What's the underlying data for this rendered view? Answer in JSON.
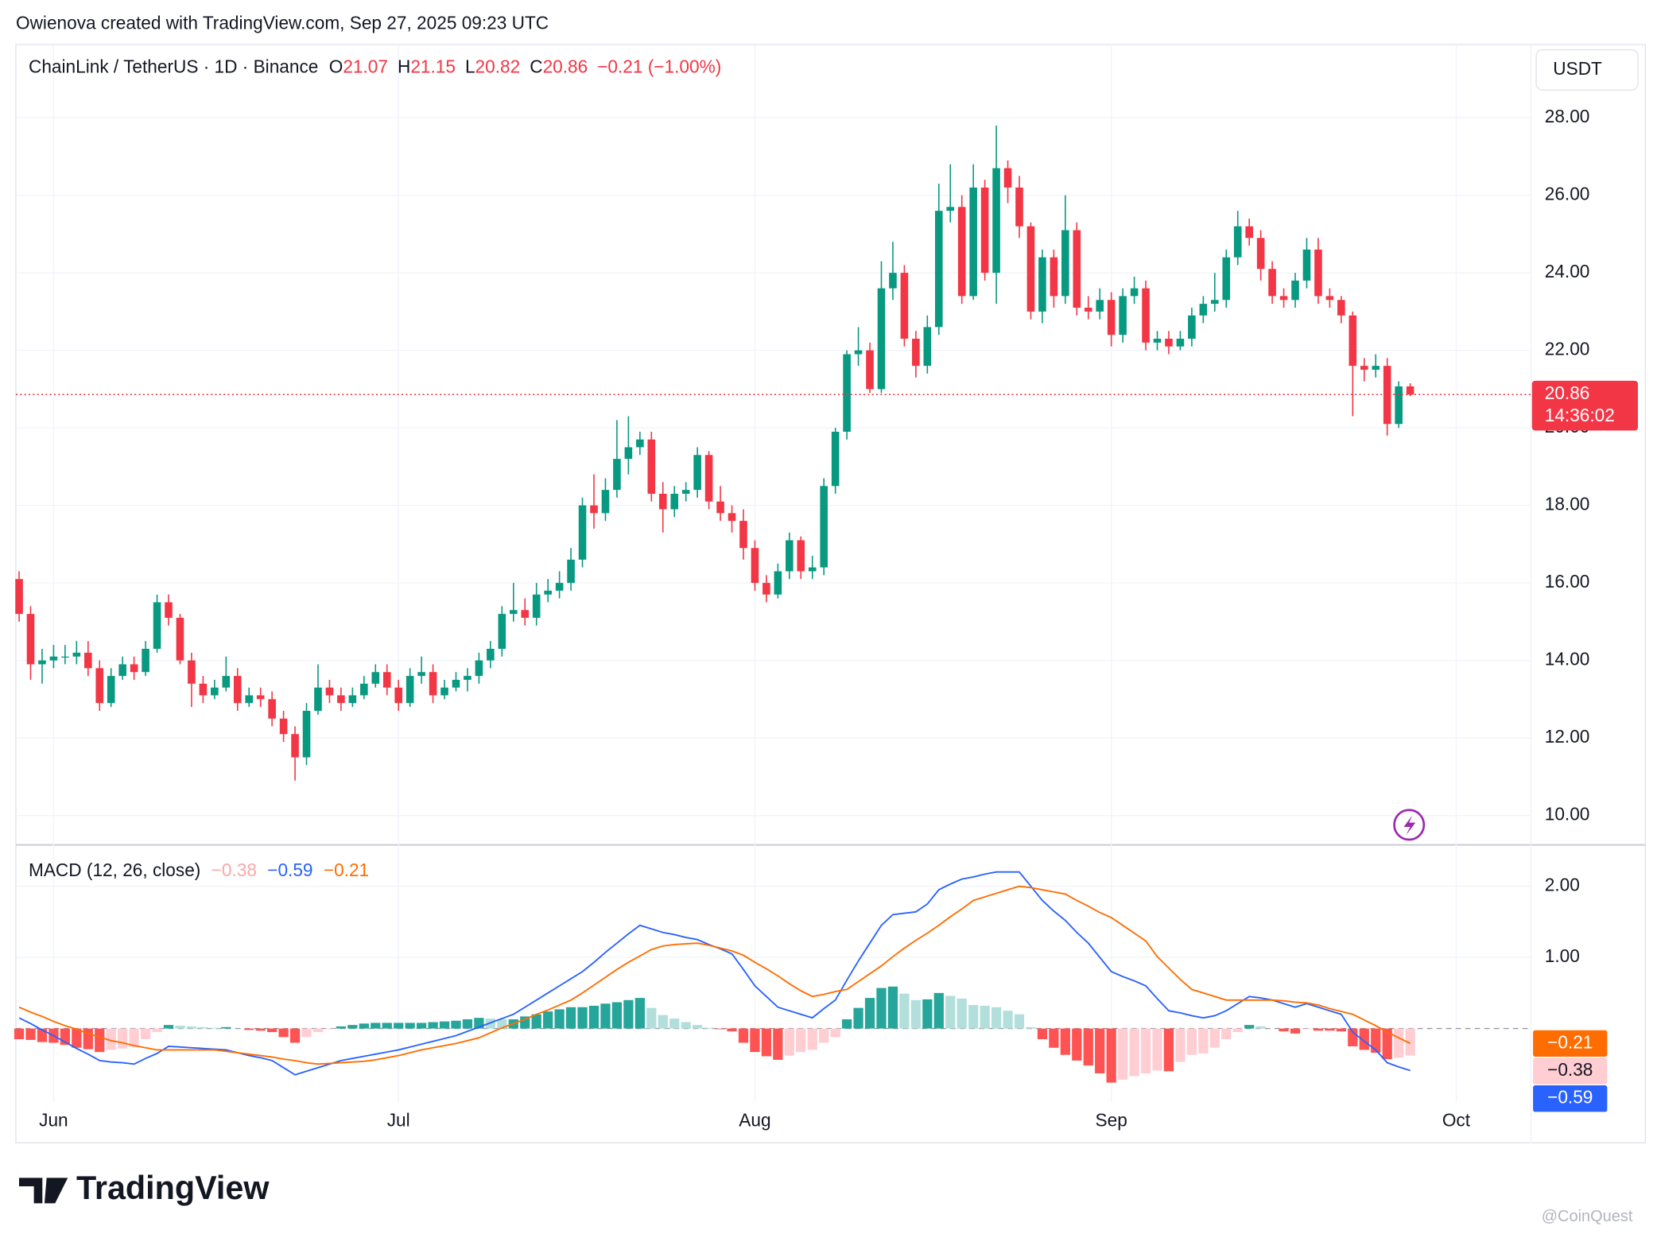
{
  "header": {
    "credit": "Owienova created with TradingView.com, Sep 27, 2025 09:23 UTC"
  },
  "chart_data": [
    {
      "type": "candlestick",
      "symbol": "ChainLink / TetherUS · 1D · Binance",
      "ohlc_legend": [
        {
          "label": "O",
          "value": 21.07
        },
        {
          "label": "H",
          "value": 21.15
        },
        {
          "label": "L",
          "value": 20.82
        },
        {
          "label": "C",
          "value": 20.86
        }
      ],
      "change": {
        "value": -0.21,
        "label": "−0.21 (−1.00%)"
      },
      "currency": "USDT",
      "up_color": "#089981",
      "down_color": "#f23645",
      "open": [
        16.1,
        15.2,
        13.9,
        14.0,
        14.1,
        14.1,
        14.2,
        13.8,
        12.9,
        13.6,
        13.9,
        13.7,
        14.3,
        15.5,
        15.1,
        14.0,
        13.4,
        13.1,
        13.3,
        13.6,
        12.9,
        13.1,
        13.0,
        12.5,
        12.1,
        11.5,
        12.7,
        13.3,
        13.1,
        12.9,
        13.1,
        13.4,
        13.7,
        13.3,
        12.9,
        13.6,
        13.7,
        13.1,
        13.3,
        13.5,
        13.6,
        14.0,
        14.3,
        15.2,
        15.3,
        15.1,
        15.7,
        15.8,
        16.0,
        16.6,
        18.0,
        17.8,
        18.4,
        19.2,
        19.5,
        19.7,
        18.3,
        17.9,
        18.3,
        18.4,
        19.3,
        18.1,
        17.8,
        17.6,
        16.9,
        16.0,
        15.7,
        16.3,
        17.1,
        16.3,
        16.4,
        18.5,
        19.9,
        21.9,
        22.0,
        21.0,
        23.6,
        24.0,
        22.3,
        21.6,
        22.6,
        25.6,
        25.7,
        23.4,
        26.2,
        24.0,
        26.7,
        26.2,
        25.2,
        23.0,
        24.4,
        23.4,
        25.1,
        23.1,
        23.0,
        23.3,
        22.4,
        23.4,
        23.6,
        22.2,
        22.3,
        22.1,
        22.3,
        22.9,
        23.2,
        23.3,
        24.4,
        25.2,
        24.9,
        24.1,
        23.4,
        23.3,
        23.8,
        24.6,
        23.4,
        23.3,
        22.9,
        21.6,
        21.5,
        21.6,
        20.1,
        21.07
      ],
      "high": [
        16.3,
        15.4,
        14.3,
        14.4,
        14.4,
        14.5,
        14.5,
        14.0,
        13.8,
        14.1,
        14.1,
        14.5,
        15.7,
        15.7,
        15.2,
        14.2,
        13.6,
        13.5,
        14.1,
        13.8,
        13.3,
        13.3,
        13.2,
        12.7,
        12.3,
        12.9,
        13.9,
        13.5,
        13.3,
        13.3,
        13.6,
        13.9,
        13.9,
        13.5,
        13.8,
        14.1,
        13.9,
        13.5,
        13.7,
        13.8,
        14.2,
        14.5,
        15.4,
        16.0,
        15.6,
        16.0,
        16.1,
        16.3,
        16.9,
        18.2,
        18.8,
        18.7,
        20.2,
        20.3,
        19.9,
        19.9,
        18.6,
        18.5,
        18.6,
        19.5,
        19.4,
        18.5,
        18.0,
        17.9,
        17.1,
        16.2,
        16.5,
        17.3,
        17.2,
        16.7,
        18.7,
        20.0,
        22.0,
        22.6,
        22.2,
        24.3,
        24.8,
        24.2,
        22.5,
        22.9,
        26.3,
        26.8,
        26.0,
        26.8,
        26.4,
        27.8,
        26.9,
        26.5,
        25.3,
        24.6,
        24.6,
        26.0,
        25.3,
        23.4,
        23.6,
        23.5,
        23.6,
        23.9,
        23.8,
        22.5,
        22.5,
        22.5,
        23.1,
        23.4,
        24.0,
        24.6,
        25.6,
        25.4,
        25.1,
        24.3,
        23.6,
        24.0,
        24.9,
        24.9,
        23.6,
        23.4,
        23.0,
        21.8,
        21.9,
        21.8,
        21.2,
        21.15
      ],
      "low": [
        15.0,
        13.5,
        13.4,
        13.8,
        13.9,
        13.9,
        13.6,
        12.7,
        12.8,
        13.5,
        13.5,
        13.6,
        14.2,
        14.9,
        13.9,
        12.8,
        12.9,
        13.0,
        13.2,
        12.7,
        12.8,
        12.8,
        12.3,
        11.9,
        10.9,
        11.3,
        12.6,
        12.9,
        12.7,
        12.8,
        13.0,
        13.3,
        13.1,
        12.7,
        12.8,
        13.4,
        12.9,
        13.0,
        13.2,
        13.2,
        13.4,
        13.8,
        14.1,
        15.0,
        14.9,
        14.9,
        15.5,
        15.6,
        15.8,
        16.4,
        17.4,
        17.6,
        18.2,
        18.8,
        19.3,
        18.1,
        17.3,
        17.7,
        18.1,
        18.2,
        17.9,
        17.6,
        17.3,
        16.6,
        15.8,
        15.5,
        15.6,
        16.1,
        16.1,
        16.1,
        16.2,
        18.3,
        19.7,
        21.6,
        20.9,
        20.9,
        23.3,
        22.1,
        21.3,
        21.4,
        22.4,
        25.3,
        23.2,
        23.3,
        23.8,
        23.2,
        25.8,
        24.9,
        22.8,
        22.7,
        23.1,
        23.2,
        22.9,
        22.8,
        22.8,
        22.1,
        22.2,
        23.2,
        22.0,
        22.0,
        21.9,
        22.0,
        22.1,
        22.7,
        23.0,
        23.1,
        24.2,
        24.7,
        23.8,
        23.2,
        23.1,
        23.1,
        23.6,
        23.2,
        23.1,
        22.7,
        20.3,
        21.2,
        21.3,
        19.8,
        20.0,
        20.82
      ],
      "close": [
        15.2,
        13.9,
        14.0,
        14.1,
        14.1,
        14.2,
        13.8,
        12.9,
        13.6,
        13.9,
        13.7,
        14.3,
        15.5,
        15.1,
        14.0,
        13.4,
        13.1,
        13.3,
        13.6,
        12.9,
        13.1,
        13.0,
        12.5,
        12.1,
        11.5,
        12.7,
        13.3,
        13.1,
        12.9,
        13.1,
        13.4,
        13.7,
        13.3,
        12.9,
        13.6,
        13.7,
        13.1,
        13.3,
        13.5,
        13.6,
        14.0,
        14.3,
        15.2,
        15.3,
        15.1,
        15.7,
        15.8,
        16.0,
        16.6,
        18.0,
        17.8,
        18.4,
        19.2,
        19.5,
        19.7,
        18.3,
        17.9,
        18.3,
        18.4,
        19.3,
        18.1,
        17.8,
        17.6,
        16.9,
        16.0,
        15.7,
        16.3,
        17.1,
        16.3,
        16.4,
        18.5,
        19.9,
        21.9,
        22.0,
        21.0,
        23.6,
        24.0,
        22.3,
        21.6,
        22.6,
        25.6,
        25.7,
        23.4,
        26.2,
        24.0,
        26.7,
        26.2,
        25.2,
        23.0,
        24.4,
        23.4,
        25.1,
        23.1,
        23.0,
        23.3,
        22.4,
        23.4,
        23.6,
        22.2,
        22.3,
        22.1,
        22.3,
        22.9,
        23.2,
        23.3,
        24.4,
        25.2,
        24.9,
        24.1,
        23.4,
        23.3,
        23.8,
        24.6,
        23.4,
        23.3,
        22.9,
        21.6,
        21.5,
        21.6,
        20.1,
        21.07,
        20.86
      ],
      "xlim": [
        -0.28,
        131.5
      ],
      "xticks": [
        {
          "value": 3,
          "label": "Jun"
        },
        {
          "value": 33,
          "label": "Jul"
        },
        {
          "value": 64,
          "label": "Aug"
        },
        {
          "value": 95,
          "label": "Sep"
        },
        {
          "value": 125,
          "label": "Oct"
        }
      ],
      "ylim": [
        9.24,
        29.89
      ],
      "yticks": [
        {
          "value": 28,
          "label": "28.00"
        },
        {
          "value": 26,
          "label": "26.00"
        },
        {
          "value": 24,
          "label": "24.00"
        },
        {
          "value": 22,
          "label": "22.00"
        },
        {
          "value": 20,
          "label": "20.00"
        },
        {
          "value": 18,
          "label": "18.00"
        },
        {
          "value": 16,
          "label": "16.00"
        },
        {
          "value": 14,
          "label": "14.00"
        },
        {
          "value": 12,
          "label": "12.00"
        },
        {
          "value": 10,
          "label": "10.00"
        }
      ],
      "grid": true,
      "price_tag": {
        "value": 20.86,
        "countdown": "14:36:02"
      }
    },
    {
      "type": "macd",
      "title": "MACD (12, 26, close)",
      "legend_values": [
        {
          "value": -0.38,
          "label": "−0.38",
          "color": "#f7a9a8"
        },
        {
          "value": -0.59,
          "label": "−0.59",
          "color": "#2962ff"
        },
        {
          "value": -0.21,
          "label": "−0.21",
          "color": "#ff6d00"
        }
      ],
      "series": [
        {
          "color": "#2962ff",
          "values": [
            0.15,
            0.07,
            -0.02,
            -0.1,
            -0.19,
            -0.28,
            -0.36,
            -0.45,
            -0.47,
            -0.48,
            -0.5,
            -0.42,
            -0.35,
            -0.25,
            -0.26,
            -0.27,
            -0.28,
            -0.29,
            -0.3,
            -0.34,
            -0.38,
            -0.41,
            -0.45,
            -0.55,
            -0.65,
            -0.6,
            -0.55,
            -0.5,
            -0.45,
            -0.42,
            -0.39,
            -0.36,
            -0.33,
            -0.3,
            -0.26,
            -0.22,
            -0.18,
            -0.14,
            -0.1,
            -0.04,
            0.02,
            0.08,
            0.14,
            0.2,
            0.3,
            0.4,
            0.5,
            0.6,
            0.7,
            0.8,
            0.93,
            1.07,
            1.2,
            1.33,
            1.45,
            1.4,
            1.35,
            1.32,
            1.28,
            1.25,
            1.18,
            1.12,
            1.05,
            0.83,
            0.6,
            0.45,
            0.3,
            0.25,
            0.2,
            0.15,
            0.28,
            0.4,
            0.68,
            0.95,
            1.2,
            1.45,
            1.6,
            1.62,
            1.64,
            1.75,
            1.95,
            2.03,
            2.1,
            2.13,
            2.17,
            2.2,
            2.2,
            2.2,
            2.0,
            1.8,
            1.65,
            1.52,
            1.35,
            1.2,
            1.0,
            0.8,
            0.73,
            0.67,
            0.6,
            0.42,
            0.25,
            0.22,
            0.18,
            0.15,
            0.18,
            0.25,
            0.35,
            0.45,
            0.43,
            0.4,
            0.35,
            0.3,
            0.35,
            0.3,
            0.25,
            0.2,
            -0.05,
            -0.18,
            -0.3,
            -0.48,
            -0.54,
            -0.59
          ]
        },
        {
          "color": "#ff6d00",
          "values": [
            0.3,
            0.23,
            0.17,
            0.1,
            0.04,
            -0.01,
            -0.07,
            -0.12,
            -0.17,
            -0.2,
            -0.24,
            -0.27,
            -0.3,
            -0.3,
            -0.3,
            -0.3,
            -0.3,
            -0.3,
            -0.32,
            -0.34,
            -0.36,
            -0.38,
            -0.4,
            -0.43,
            -0.45,
            -0.48,
            -0.5,
            -0.49,
            -0.48,
            -0.47,
            -0.46,
            -0.44,
            -0.41,
            -0.38,
            -0.34,
            -0.3,
            -0.27,
            -0.24,
            -0.21,
            -0.17,
            -0.13,
            -0.06,
            0.01,
            0.07,
            0.13,
            0.2,
            0.26,
            0.33,
            0.4,
            0.5,
            0.61,
            0.72,
            0.83,
            0.93,
            1.02,
            1.11,
            1.16,
            1.18,
            1.19,
            1.2,
            1.17,
            1.13,
            1.09,
            1.03,
            0.93,
            0.84,
            0.74,
            0.63,
            0.53,
            0.45,
            0.48,
            0.52,
            0.55,
            0.66,
            0.77,
            0.88,
            1.01,
            1.13,
            1.24,
            1.34,
            1.45,
            1.57,
            1.68,
            1.8,
            1.85,
            1.9,
            1.95,
            2.0,
            1.98,
            1.95,
            1.92,
            1.89,
            1.8,
            1.72,
            1.63,
            1.56,
            1.45,
            1.34,
            1.23,
            1.01,
            0.85,
            0.69,
            0.55,
            0.5,
            0.45,
            0.4,
            0.4,
            0.4,
            0.4,
            0.4,
            0.39,
            0.37,
            0.36,
            0.33,
            0.28,
            0.24,
            0.2,
            0.12,
            0.04,
            -0.05,
            -0.13,
            -0.21
          ]
        }
      ],
      "histogram": {
        "colors": [
          "#26a69a",
          "#b2dfdb",
          "#ff5252",
          "#ffcdd2"
        ],
        "values": [
          -0.15,
          -0.16,
          -0.19,
          -0.2,
          -0.23,
          -0.27,
          -0.29,
          -0.33,
          -0.3,
          -0.28,
          -0.26,
          -0.15,
          -0.05,
          0.05,
          0.04,
          0.03,
          0.02,
          0.01,
          0.02,
          0,
          -0.02,
          -0.03,
          -0.05,
          -0.12,
          -0.2,
          -0.12,
          -0.05,
          -0.01,
          0.03,
          0.05,
          0.07,
          0.08,
          0.08,
          0.08,
          0.08,
          0.08,
          0.09,
          0.1,
          0.11,
          0.13,
          0.15,
          0.14,
          0.13,
          0.13,
          0.17,
          0.2,
          0.24,
          0.27,
          0.3,
          0.3,
          0.32,
          0.35,
          0.37,
          0.4,
          0.43,
          0.29,
          0.19,
          0.14,
          0.09,
          0.05,
          0.01,
          -0.01,
          -0.04,
          -0.2,
          -0.33,
          -0.39,
          -0.44,
          -0.38,
          -0.33,
          -0.3,
          -0.2,
          -0.12,
          0.13,
          0.29,
          0.43,
          0.57,
          0.59,
          0.49,
          0.4,
          0.41,
          0.5,
          0.46,
          0.42,
          0.33,
          0.32,
          0.3,
          0.25,
          0.2,
          0.02,
          -0.15,
          -0.27,
          -0.37,
          -0.45,
          -0.52,
          -0.63,
          -0.76,
          -0.72,
          -0.67,
          -0.63,
          -0.59,
          -0.6,
          -0.47,
          -0.37,
          -0.35,
          -0.27,
          -0.15,
          -0.05,
          0.05,
          0.03,
          0,
          -0.04,
          -0.07,
          -0.01,
          -0.03,
          -0.03,
          -0.04,
          -0.25,
          -0.3,
          -0.34,
          -0.43,
          -0.41,
          -0.38
        ]
      },
      "ylim": [
        -1.04,
        2.58
      ],
      "yticks": [
        {
          "value": 2,
          "label": "2.00"
        },
        {
          "value": 1,
          "label": "1.00"
        }
      ]
    }
  ],
  "footer": {
    "logo": "TradingView",
    "watermark": "@CoinQuest"
  }
}
